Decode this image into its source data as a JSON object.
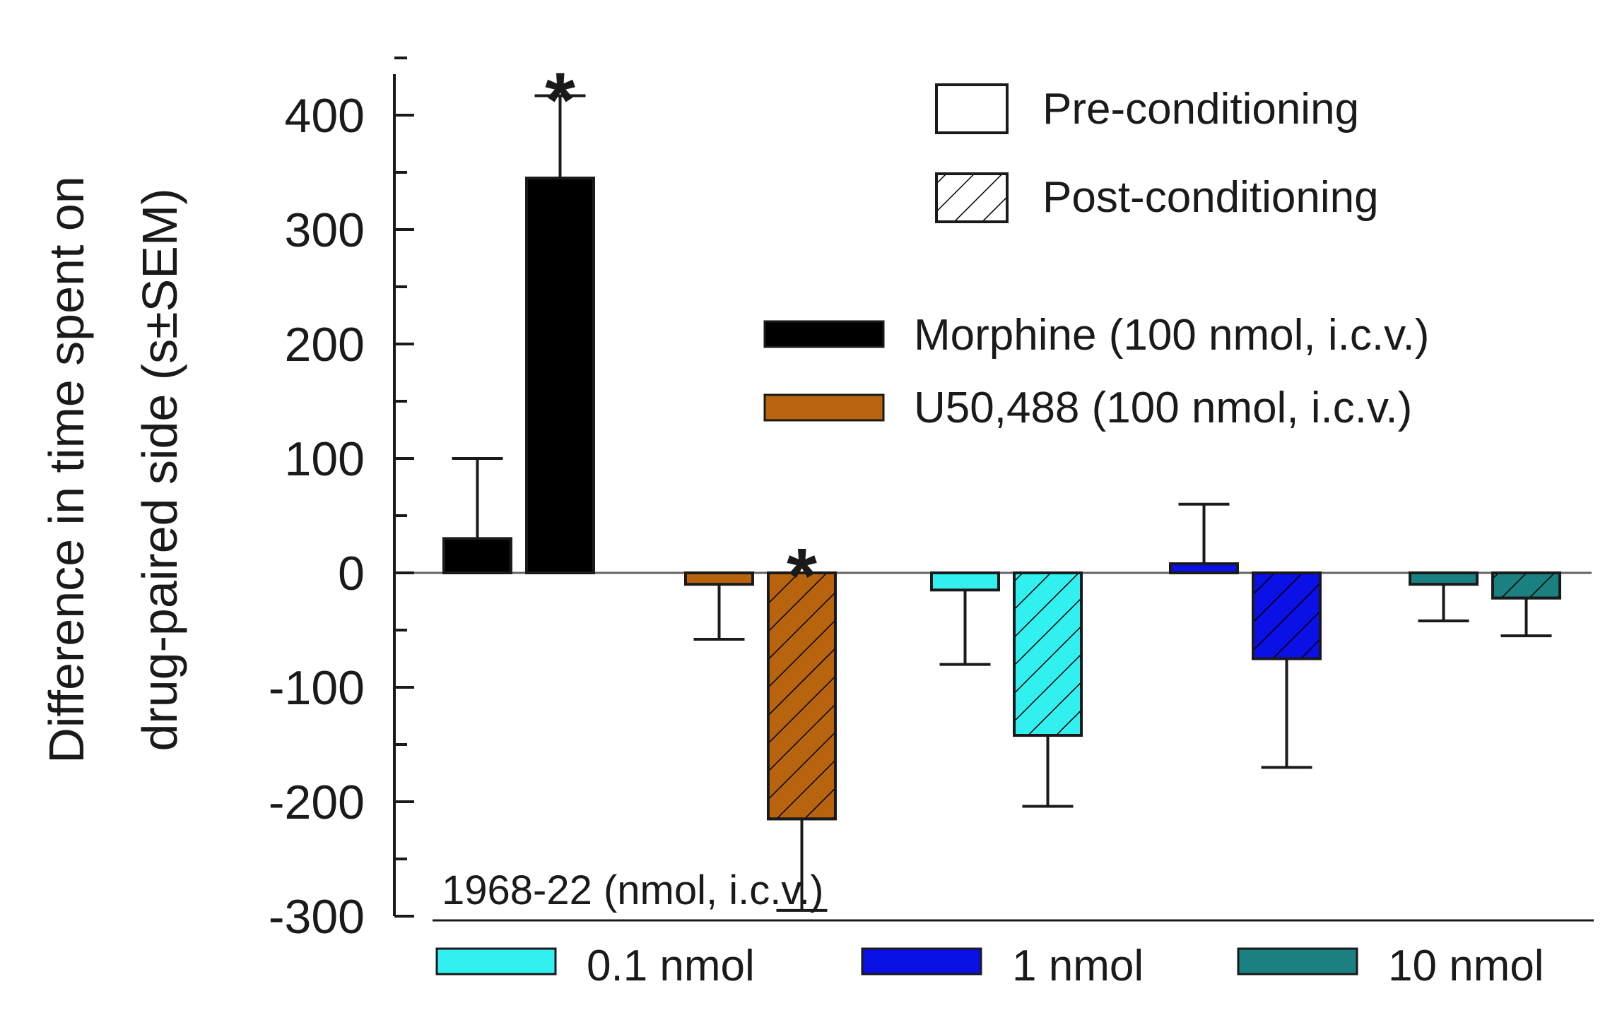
{
  "chart_data": {
    "type": "bar",
    "ylabel_line1": "Difference in time spent on",
    "ylabel_line2": "drug-paired side (s±SEM)",
    "xlabel": "",
    "ylim": [
      -300,
      430
    ],
    "yticks": [
      400,
      300,
      200,
      100,
      0,
      -100,
      -200,
      -300
    ],
    "ytick_labels": [
      "400",
      "300",
      "200",
      "100",
      "0",
      "-100",
      "-200",
      "-300"
    ],
    "groups": [
      {
        "name": "Morphine (100 nmol, i.c.v.)",
        "color": "#000000",
        "pre": {
          "value": 30,
          "sem": 70
        },
        "post": {
          "value": 345,
          "sem": 72
        },
        "significant_post": true
      },
      {
        "name": "U50,488 (100 nmol, i.c.v.)",
        "color": "#b8640f",
        "pre": {
          "value": -10,
          "sem": 48
        },
        "post": {
          "value": -215,
          "sem": 80
        },
        "significant_post": true
      },
      {
        "name": "0.1 nmol",
        "color": "#33f0f0",
        "pre": {
          "value": -15,
          "sem": 65
        },
        "post": {
          "value": -142,
          "sem": 62
        },
        "significant_post": false
      },
      {
        "name": "1 nmol",
        "color": "#0a10e6",
        "pre": {
          "value": 8,
          "sem": 52
        },
        "post": {
          "value": -75,
          "sem": 95
        },
        "significant_post": false
      },
      {
        "name": "10 nmol",
        "color": "#1a8080",
        "pre": {
          "value": -10,
          "sem": 32
        },
        "post": {
          "value": -22,
          "sem": 33
        },
        "significant_post": false
      }
    ],
    "significance_marker": "*",
    "legend_fill": [
      {
        "label": "Pre-conditioning",
        "pattern": "none"
      },
      {
        "label": "Post-conditioning",
        "pattern": "hatch"
      }
    ],
    "legend_drugs": [
      {
        "label": "Morphine (100 nmol, i.c.v.)",
        "color": "#000000"
      },
      {
        "label": "U50,488 (100 nmol, i.c.v.)",
        "color": "#b8640f"
      }
    ],
    "legend_doses_title": "1968-22 (nmol, i.c.v.)",
    "legend_doses": [
      {
        "label": "0.1 nmol",
        "color": "#33f0f0"
      },
      {
        "label": "1 nmol",
        "color": "#0a10e6"
      },
      {
        "label": "10 nmol",
        "color": "#1a8080"
      }
    ]
  }
}
